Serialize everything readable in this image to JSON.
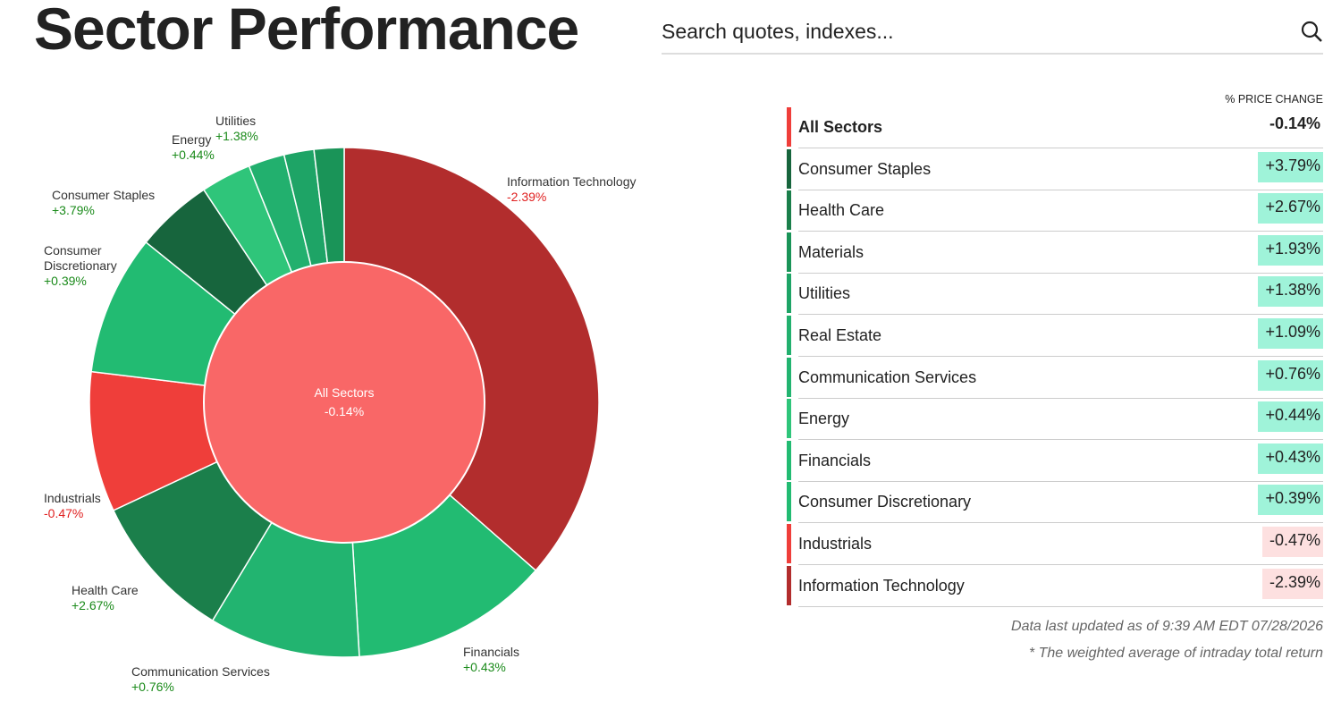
{
  "header": {
    "title": "Sector Performance",
    "search_placeholder": "Search quotes, indexes..."
  },
  "chart_data": {
    "type": "donut",
    "categories": [
      "Information Technology",
      "Financials",
      "Communication Services",
      "Health Care",
      "Industrials",
      "Consumer Discretionary",
      "Consumer Staples",
      "Energy",
      null,
      "Utilities",
      null
    ],
    "values": [
      36.5,
      12.6,
      9.6,
      9.4,
      8.9,
      8.9,
      4.9,
      3.2,
      2.3,
      1.9,
      1.9
    ],
    "change_labels": [
      "-2.39%",
      "+0.43%",
      "+0.76%",
      "+2.67%",
      "-0.47%",
      "+0.39%",
      "+3.79%",
      "+0.44%",
      null,
      "+1.38%",
      null
    ],
    "colors": [
      "#b22d2d",
      "#22bb72",
      "#22b470",
      "#1b7f4b",
      "#ef3e3a",
      "#22bb72",
      "#17653d",
      "#2fc57a",
      "#22b06e",
      "#1ea466",
      "#1a9458"
    ],
    "center_label": "All Sectors",
    "center_value": "-0.14%",
    "center_color": "#f96767"
  },
  "table": {
    "header": "% PRICE CHANGE",
    "total": {
      "name": "All Sectors",
      "change": "-0.14%",
      "color": "#ef3e3a"
    },
    "rows": [
      {
        "name": "Consumer Staples",
        "change": "+3.79%",
        "color": "#17653d",
        "bg": "#9ff3d9"
      },
      {
        "name": "Health Care",
        "change": "+2.67%",
        "color": "#1b7f4b",
        "bg": "#9ff3d9"
      },
      {
        "name": "Materials",
        "change": "+1.93%",
        "color": "#1a9458",
        "bg": "#9ff3d9"
      },
      {
        "name": "Utilities",
        "change": "+1.38%",
        "color": "#1ea466",
        "bg": "#9ff3d9"
      },
      {
        "name": "Real Estate",
        "change": "+1.09%",
        "color": "#22b06e",
        "bg": "#9ff3d9"
      },
      {
        "name": "Communication Services",
        "change": "+0.76%",
        "color": "#22b470",
        "bg": "#9ff3d9"
      },
      {
        "name": "Energy",
        "change": "+0.44%",
        "color": "#2fc57a",
        "bg": "#9ff3d9"
      },
      {
        "name": "Financials",
        "change": "+0.43%",
        "color": "#22bb72",
        "bg": "#9ff3d9"
      },
      {
        "name": "Consumer Discretionary",
        "change": "+0.39%",
        "color": "#22bb72",
        "bg": "#9ff3d9"
      },
      {
        "name": "Industrials",
        "change": "-0.47%",
        "color": "#ef3e3a",
        "bg": "#fde0e0"
      },
      {
        "name": "Information Technology",
        "change": "-2.39%",
        "color": "#b22d2d",
        "bg": "#fde0e0"
      }
    ]
  },
  "footer": {
    "updated": "Data last updated as of 9:39 AM EDT 07/28/2026",
    "note": "* The weighted average of intraday total return"
  }
}
